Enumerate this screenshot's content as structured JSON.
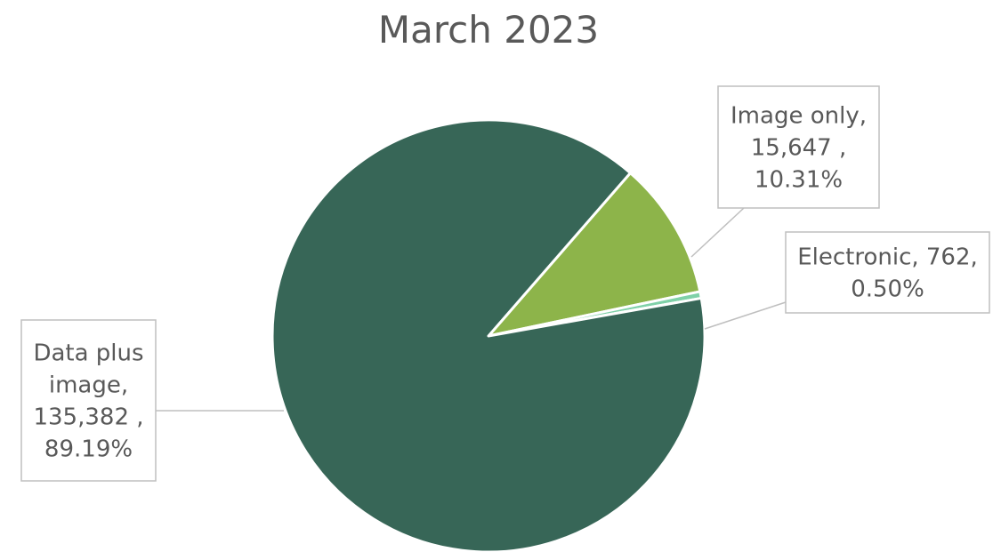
{
  "chart_data": {
    "type": "pie",
    "title": "March 2023",
    "slices": [
      {
        "label": "Image only",
        "value": 15647,
        "value_text": "15,647",
        "percent": 10.31,
        "percent_text": "10.31%",
        "color": "#8db44a"
      },
      {
        "label": "Electronic",
        "value": 762,
        "value_text": "762",
        "percent": 0.5,
        "percent_text": "0.50%",
        "color": "#7fd1a8"
      },
      {
        "label": "Data plus image",
        "value": 135382,
        "value_text": "135,382",
        "percent": 89.19,
        "percent_text": "89.19%",
        "color": "#376657"
      }
    ],
    "legend": "none",
    "data_labels": "outside with leader lines"
  }
}
